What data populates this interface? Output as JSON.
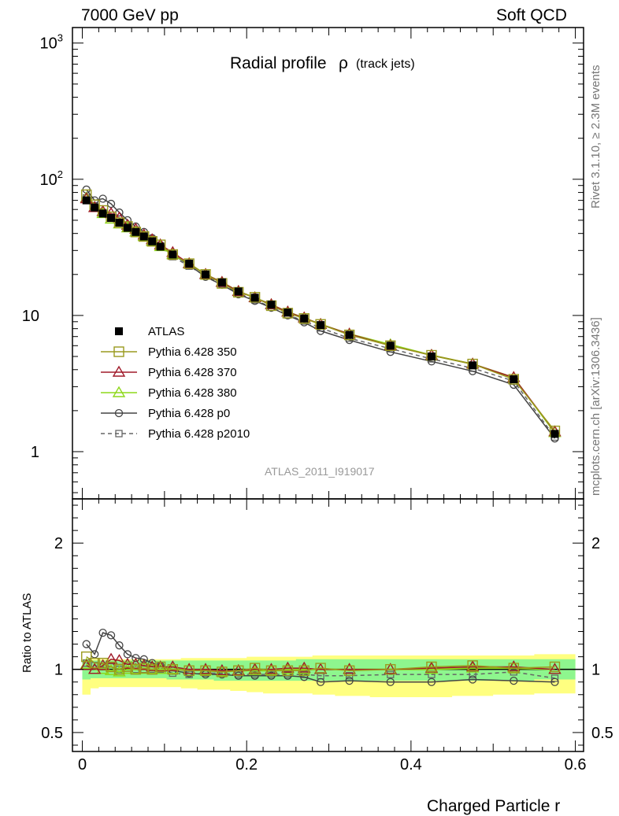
{
  "header": {
    "left": "7000 GeV pp",
    "right": "Soft QCD"
  },
  "side_labels": {
    "rivet": "Rivet 3.1.10, ≥ 2.3M events",
    "mcplots": "mcplots.cern.ch [arXiv:1306.3436]"
  },
  "watermark": "ATLAS_2011_I919017",
  "chart_data": {
    "type": "line",
    "title": "Radial profile",
    "title_symbol": "ρ",
    "title_sub": "(track jets)",
    "xlabel": "Charged Particle r",
    "ylabel_ratio": "Ratio to ATLAS",
    "x": [
      0.005,
      0.015,
      0.025,
      0.035,
      0.045,
      0.055,
      0.065,
      0.075,
      0.085,
      0.095,
      0.11,
      0.13,
      0.15,
      0.17,
      0.19,
      0.21,
      0.23,
      0.25,
      0.27,
      0.29,
      0.325,
      0.375,
      0.425,
      0.475,
      0.525,
      0.575
    ],
    "xlim": [
      -0.012,
      0.61
    ],
    "main": {
      "yscale": "log",
      "ylim": [
        0.45,
        1300
      ],
      "ytick_labels": [
        "1",
        "10",
        "10^2",
        "10^3"
      ],
      "ytick_values": [
        1,
        10,
        100,
        1000
      ]
    },
    "ratio": {
      "ylim": [
        0.35,
        2.35
      ],
      "ytick_labels": [
        "0.5",
        "1",
        "2"
      ],
      "ytick_values": [
        0.5,
        1,
        2
      ],
      "band_inner_low": [
        0.92,
        0.93,
        0.93,
        0.93,
        0.93,
        0.93,
        0.93,
        0.93,
        0.93,
        0.93,
        0.92,
        0.92,
        0.92,
        0.91,
        0.91,
        0.91,
        0.91,
        0.91,
        0.91,
        0.91,
        0.91,
        0.91,
        0.91,
        0.91,
        0.91,
        0.92
      ],
      "band_inner_high": [
        1.07,
        1.07,
        1.07,
        1.07,
        1.07,
        1.07,
        1.07,
        1.07,
        1.07,
        1.07,
        1.07,
        1.07,
        1.07,
        1.07,
        1.07,
        1.07,
        1.07,
        1.07,
        1.08,
        1.08,
        1.08,
        1.08,
        1.08,
        1.08,
        1.08,
        1.08
      ],
      "band_outer_low": [
        0.8,
        0.85,
        0.86,
        0.86,
        0.86,
        0.86,
        0.86,
        0.86,
        0.86,
        0.86,
        0.86,
        0.85,
        0.84,
        0.84,
        0.83,
        0.82,
        0.81,
        0.81,
        0.81,
        0.8,
        0.79,
        0.78,
        0.78,
        0.79,
        0.8,
        0.81
      ],
      "band_outer_high": [
        1.08,
        1.08,
        1.08,
        1.08,
        1.08,
        1.08,
        1.08,
        1.08,
        1.08,
        1.08,
        1.08,
        1.09,
        1.09,
        1.09,
        1.09,
        1.1,
        1.1,
        1.1,
        1.1,
        1.11,
        1.11,
        1.11,
        1.11,
        1.11,
        1.11,
        1.12
      ],
      "band_colors": {
        "inner": "#8ef68e",
        "outer": "#ffff80"
      }
    },
    "legend_position": "lower-left",
    "series": [
      {
        "name": "ATLAS",
        "color": "#000000",
        "marker": "filled-square",
        "line": "none",
        "values": [
          70,
          62,
          56,
          52,
          48,
          44,
          41,
          38,
          35,
          32,
          28,
          24,
          20,
          17.5,
          15,
          13.5,
          12,
          10.5,
          9.5,
          8.5,
          7.2,
          6.0,
          5.0,
          4.3,
          3.4,
          1.35
        ],
        "ratio": [
          1,
          1,
          1,
          1,
          1,
          1,
          1,
          1,
          1,
          1,
          1,
          1,
          1,
          1,
          1,
          1,
          1,
          1,
          1,
          1,
          1,
          1,
          1,
          1,
          1,
          1
        ]
      },
      {
        "name": "Pythia 6.428 350",
        "color": "#9a9a1e",
        "marker": "open-square",
        "line": "solid",
        "values": [
          77,
          65,
          59,
          53,
          48,
          45,
          41,
          38,
          35,
          33,
          28,
          24,
          20,
          17.2,
          14.8,
          13.6,
          11.8,
          10.4,
          9.5,
          8.6,
          7.2,
          6.0,
          5.1,
          4.4,
          3.4,
          1.42
        ],
        "ratio": [
          1.1,
          1.05,
          1.05,
          1.02,
          1.0,
          1.02,
          1.0,
          1.01,
          1.0,
          1.02,
          1.0,
          0.99,
          0.99,
          0.98,
          0.99,
          1.01,
          0.99,
          0.99,
          0.99,
          1.01,
          0.99,
          1.0,
          1.02,
          1.03,
          1.01,
          1.02
        ]
      },
      {
        "name": "Pythia 6.428 370",
        "color": "#a01a2a",
        "marker": "open-triangle",
        "line": "solid",
        "values": [
          72,
          62,
          58,
          56,
          52,
          46,
          43,
          39,
          36,
          33,
          29,
          24,
          20,
          17.5,
          15,
          13.5,
          12,
          10.6,
          9.6,
          8.6,
          7.3,
          6.0,
          5.1,
          4.4,
          3.5,
          1.4
        ],
        "ratio": [
          1.03,
          1.0,
          1.03,
          1.08,
          1.07,
          1.04,
          1.04,
          1.03,
          1.02,
          1.02,
          1.02,
          1.0,
          1.0,
          0.99,
          0.99,
          1.0,
          1.0,
          1.01,
          1.01,
          1.0,
          1.0,
          1.0,
          1.01,
          1.02,
          1.02,
          1.0
        ]
      },
      {
        "name": "Pythia 6.428 380",
        "color": "#8ed81a",
        "marker": "open-triangle",
        "line": "solid",
        "values": [
          73,
          62,
          56,
          51,
          47,
          44,
          41,
          38,
          35,
          32,
          28,
          24,
          20,
          17.5,
          15,
          13.5,
          12,
          10.6,
          9.6,
          8.6,
          7.3,
          6.1,
          5.1,
          4.4,
          3.5,
          1.38
        ],
        "ratio": [
          1.04,
          1.0,
          1.0,
          0.99,
          0.98,
          1.0,
          1.0,
          1.0,
          1.0,
          1.0,
          1.0,
          1.0,
          0.99,
          0.98,
          0.99,
          0.99,
          0.99,
          1.0,
          1.0,
          1.0,
          1.0,
          1.0,
          1.0,
          1.01,
          1.01,
          1.0
        ]
      },
      {
        "name": "Pythia 6.428 p0",
        "color": "#444444",
        "marker": "open-circle",
        "line": "solid",
        "values": [
          84,
          70,
          72,
          66,
          57,
          50,
          45,
          41,
          37,
          33,
          28,
          23.5,
          19.2,
          16.8,
          14.3,
          12.8,
          11.4,
          10.0,
          8.9,
          7.7,
          6.6,
          5.4,
          4.6,
          3.9,
          3.1,
          1.25
        ],
        "ratio": [
          1.2,
          1.12,
          1.29,
          1.27,
          1.19,
          1.12,
          1.09,
          1.08,
          1.05,
          1.03,
          0.99,
          0.97,
          0.96,
          0.96,
          0.95,
          0.95,
          0.95,
          0.95,
          0.94,
          0.9,
          0.91,
          0.9,
          0.9,
          0.92,
          0.91,
          0.9
        ]
      },
      {
        "name": "Pythia 6.428 p2010",
        "color": "#666666",
        "marker": "open-square-small",
        "line": "dashed",
        "values": [
          73,
          64,
          57,
          53,
          48,
          45,
          41,
          38,
          35,
          32,
          27,
          23,
          19.5,
          17,
          14.5,
          13.0,
          11.5,
          10.1,
          9.1,
          8.1,
          6.8,
          5.7,
          4.8,
          4.1,
          3.3,
          1.28
        ],
        "ratio": [
          1.05,
          1.03,
          1.02,
          1.02,
          1.0,
          1.02,
          1.0,
          1.0,
          1.0,
          1.0,
          0.97,
          0.96,
          0.97,
          0.97,
          0.96,
          0.96,
          0.96,
          0.96,
          0.96,
          0.95,
          0.95,
          0.96,
          0.96,
          0.96,
          0.98,
          0.93
        ]
      }
    ]
  }
}
